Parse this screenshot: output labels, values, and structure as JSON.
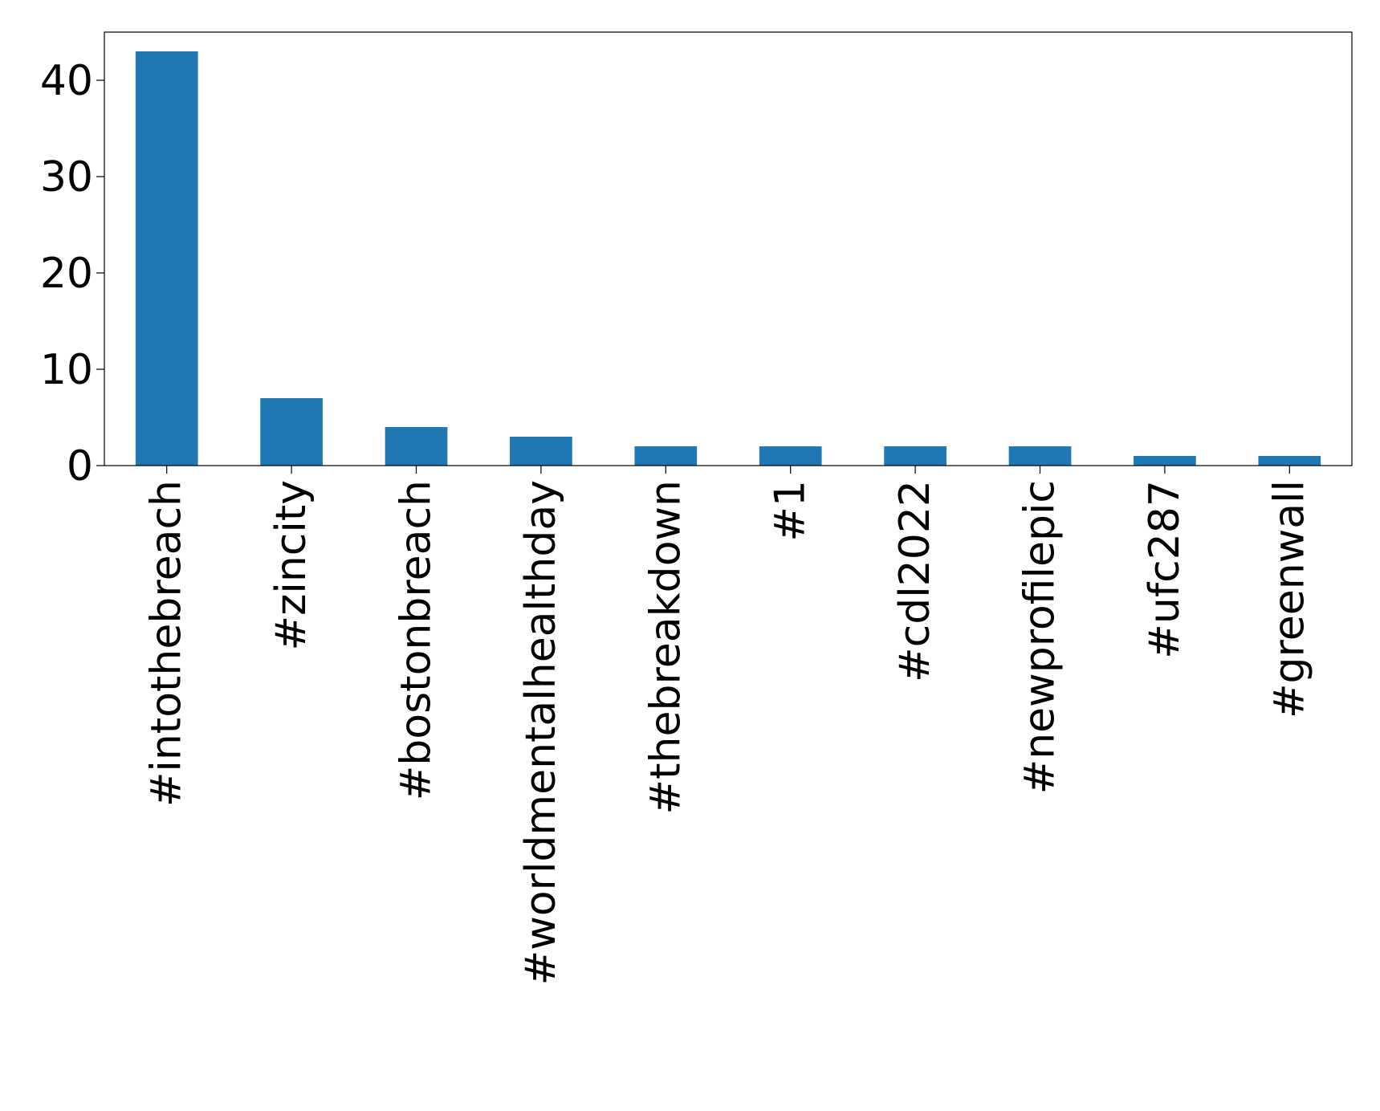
{
  "chart_data": {
    "type": "bar",
    "title": "",
    "xlabel": "",
    "ylabel": "",
    "categories": [
      "#intothebreach",
      "#zincity",
      "#bostonbreach",
      "#worldmentalhealthday",
      "#thebreakdown",
      "#1",
      "#cdl2022",
      "#newprofilepic",
      "#ufc287",
      "#greenwall"
    ],
    "values": [
      43,
      7,
      4,
      3,
      2,
      2,
      2,
      2,
      1,
      1
    ],
    "ylim": [
      0,
      45
    ],
    "yticks": [
      0,
      10,
      20,
      30,
      40
    ],
    "grid": false,
    "legend": "none",
    "bar_color": "#1f77b4"
  }
}
